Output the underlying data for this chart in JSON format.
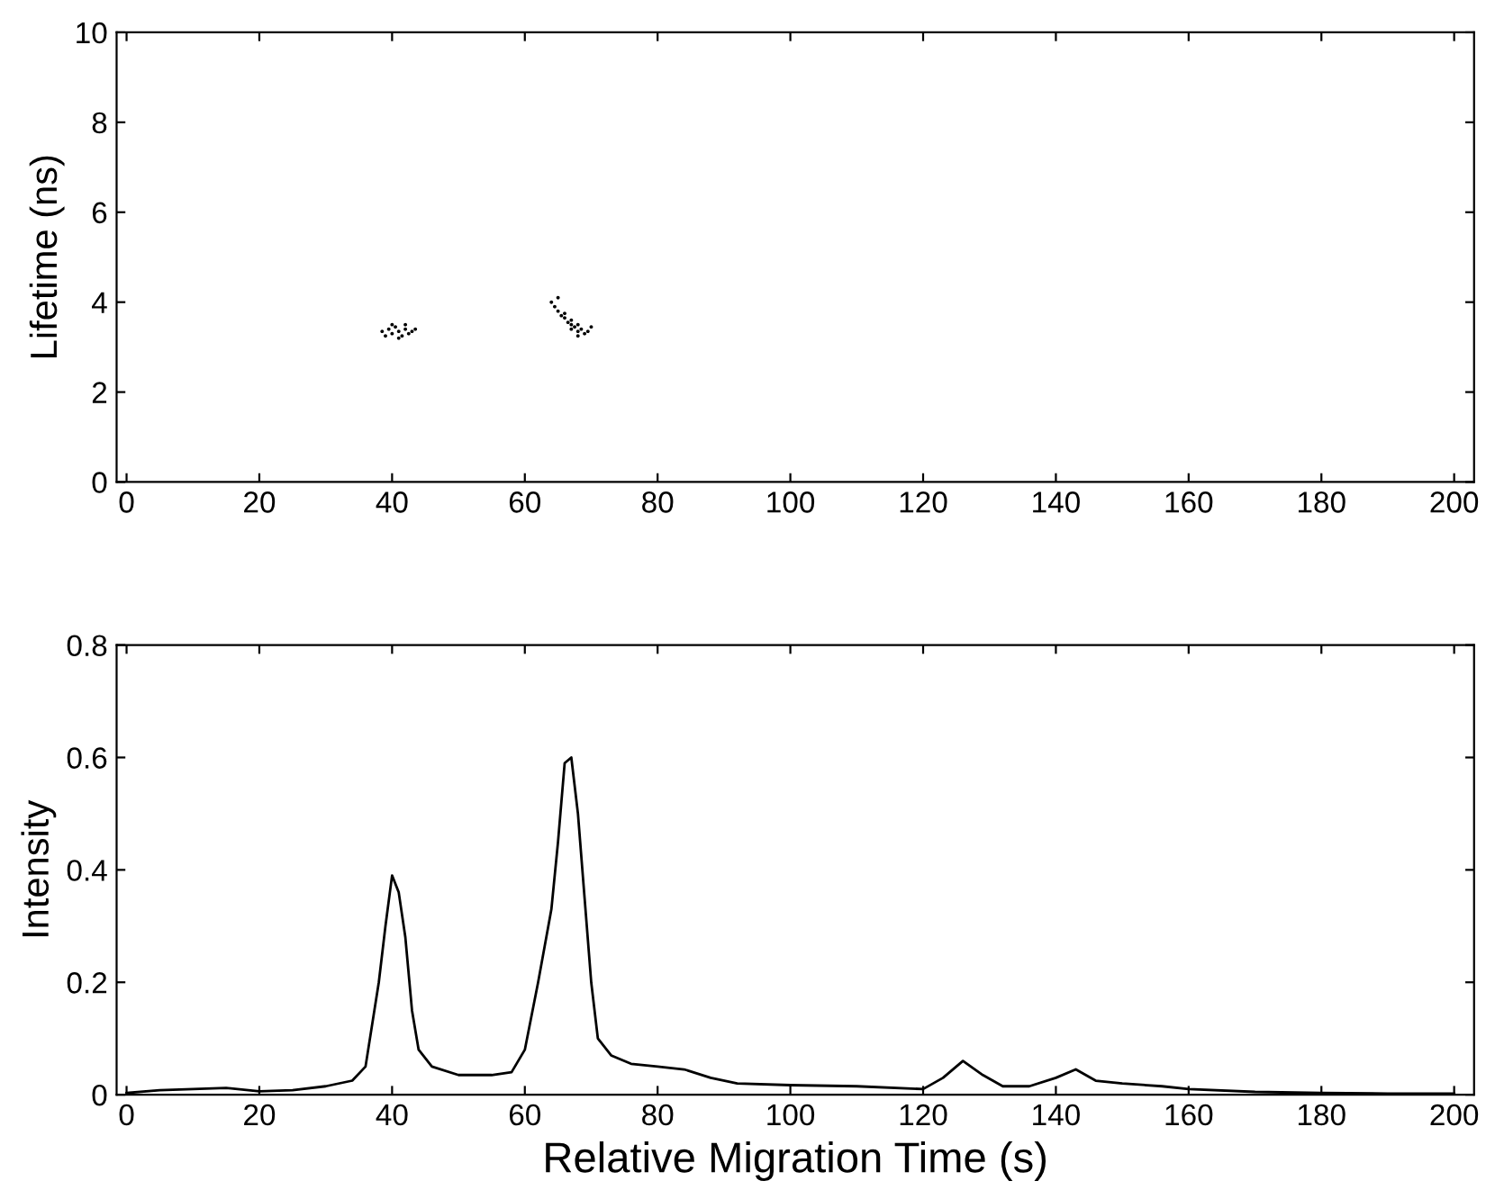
{
  "chart_data": [
    {
      "type": "scatter",
      "ylabel": "Lifetime (ns)",
      "xlim": [
        -1.5,
        203
      ],
      "xticks": [
        0,
        20,
        40,
        60,
        80,
        100,
        120,
        140,
        160,
        180,
        200
      ],
      "ylim": [
        0,
        10
      ],
      "yticks": [
        0,
        2,
        4,
        6,
        8,
        10
      ],
      "marker": "circle",
      "grid": false,
      "legend": false,
      "series": [
        {
          "color": "#000000",
          "x": [
            38.5,
            39.5,
            40,
            40.5,
            41,
            41.5,
            42,
            42.5,
            43,
            40,
            41,
            42,
            39,
            43.5,
            64,
            64.5,
            65,
            65.5,
            66,
            66.5,
            67,
            67,
            67.5,
            68,
            68,
            68.5,
            69,
            69.5,
            66,
            67,
            68,
            65,
            70
          ],
          "values": [
            3.35,
            3.4,
            3.3,
            3.45,
            3.35,
            3.25,
            3.4,
            3.3,
            3.35,
            3.5,
            3.2,
            3.5,
            3.25,
            3.4,
            4.0,
            3.9,
            3.8,
            3.7,
            3.65,
            3.55,
            3.5,
            3.4,
            3.45,
            3.35,
            3.25,
            3.4,
            3.3,
            3.35,
            3.75,
            3.6,
            3.5,
            4.1,
            3.45
          ]
        }
      ]
    },
    {
      "type": "line",
      "xlabel": "Relative Migration Time (s)",
      "ylabel": "Intensity",
      "xlim": [
        -1.5,
        203
      ],
      "xticks": [
        0,
        20,
        40,
        60,
        80,
        100,
        120,
        140,
        160,
        180,
        200
      ],
      "ylim": [
        0,
        0.8
      ],
      "yticks": [
        0,
        0.2,
        0.4,
        0.6,
        0.8
      ],
      "marker": "none",
      "line_style": "solid",
      "grid": false,
      "legend": false,
      "series": [
        {
          "color": "#000000",
          "x": [
            0,
            5,
            10,
            15,
            20,
            25,
            30,
            34,
            36,
            38,
            39,
            40,
            41,
            42,
            43,
            44,
            46,
            50,
            55,
            58,
            60,
            62,
            64,
            65,
            66,
            67,
            68,
            69,
            70,
            71,
            73,
            76,
            80,
            84,
            88,
            92,
            100,
            110,
            120,
            123,
            126,
            129,
            132,
            136,
            140,
            143,
            146,
            150,
            156,
            160,
            170,
            180,
            190,
            200
          ],
          "values": [
            0.003,
            0.008,
            0.01,
            0.012,
            0.006,
            0.008,
            0.015,
            0.025,
            0.05,
            0.2,
            0.3,
            0.39,
            0.36,
            0.28,
            0.15,
            0.08,
            0.05,
            0.035,
            0.035,
            0.04,
            0.08,
            0.2,
            0.33,
            0.45,
            0.59,
            0.6,
            0.5,
            0.35,
            0.2,
            0.1,
            0.07,
            0.055,
            0.05,
            0.045,
            0.03,
            0.02,
            0.017,
            0.015,
            0.01,
            0.03,
            0.06,
            0.035,
            0.015,
            0.015,
            0.03,
            0.045,
            0.025,
            0.02,
            0.015,
            0.01,
            0.005,
            0.003,
            0.002,
            0.002
          ]
        }
      ]
    }
  ]
}
